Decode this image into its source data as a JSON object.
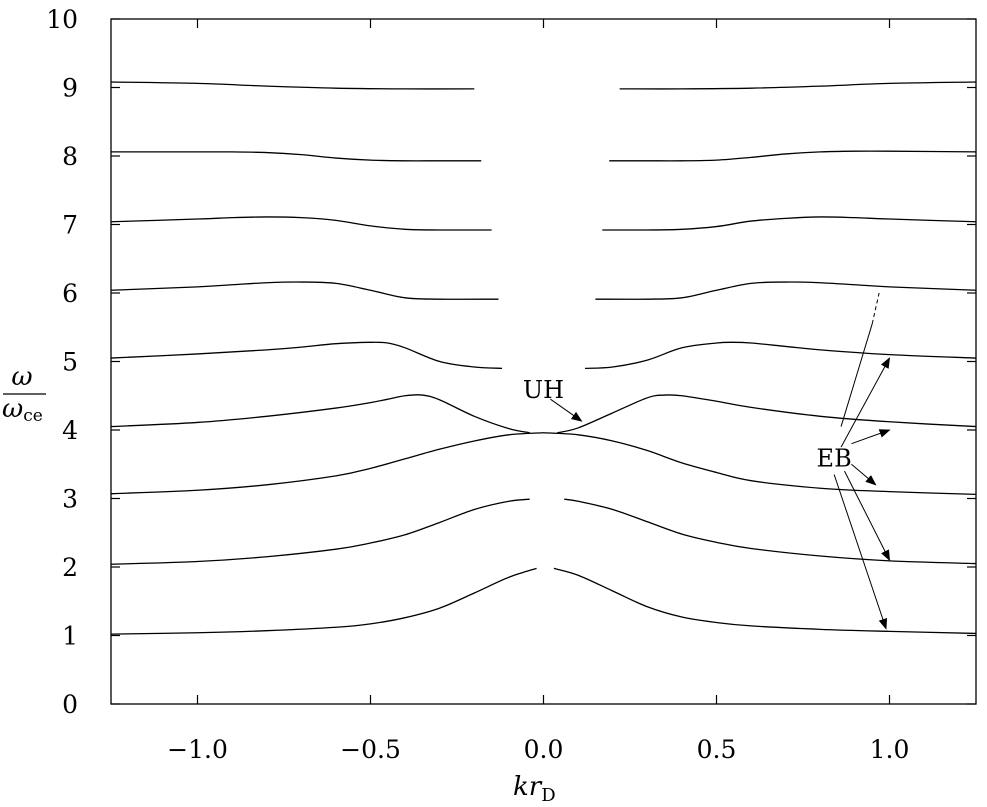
{
  "chart_data": {
    "type": "line",
    "xlabel": "kr_D",
    "ylabel": "ω/ω_ce",
    "xlabel_parts": {
      "main": "kr",
      "sub": "D"
    },
    "ylabel_parts": {
      "numerator": "ω",
      "denominator": "ω",
      "denominator_sub": "ce"
    },
    "xlim": [
      -1.25,
      1.25
    ],
    "ylim": [
      0,
      10
    ],
    "x_ticks": [
      -1.0,
      -0.5,
      0.0,
      0.5,
      1.0
    ],
    "x_tick_labels": [
      "−1.0",
      "−0.5",
      "0.0",
      "0.5",
      "1.0"
    ],
    "y_ticks": [
      0,
      1,
      2,
      3,
      4,
      5,
      6,
      7,
      8,
      9,
      10
    ],
    "y_tick_labels": [
      "0",
      "1",
      "2",
      "3",
      "4",
      "5",
      "6",
      "7",
      "8",
      "9",
      "10"
    ],
    "grid": false,
    "legend": "none",
    "series": [
      {
        "x": [
          -1.25,
          -1.0,
          -0.8,
          -0.6,
          -0.5,
          -0.4,
          -0.3,
          -0.2,
          -0.1,
          -0.02
        ],
        "y": [
          1.02,
          1.04,
          1.07,
          1.12,
          1.17,
          1.26,
          1.4,
          1.62,
          1.85,
          1.98
        ]
      },
      {
        "x": [
          0.03,
          0.1,
          0.2,
          0.3,
          0.4,
          0.5,
          0.6,
          0.8,
          1.0,
          1.25
        ],
        "y": [
          1.98,
          1.88,
          1.65,
          1.42,
          1.27,
          1.19,
          1.14,
          1.09,
          1.06,
          1.03
        ]
      },
      {
        "x": [
          -1.25,
          -1.0,
          -0.8,
          -0.6,
          -0.5,
          -0.4,
          -0.3,
          -0.2,
          -0.1,
          -0.04
        ],
        "y": [
          2.04,
          2.08,
          2.15,
          2.26,
          2.35,
          2.47,
          2.65,
          2.84,
          2.96,
          2.99
        ]
      },
      {
        "x": [
          0.06,
          0.1,
          0.2,
          0.3,
          0.4,
          0.5,
          0.6,
          0.8,
          1.0,
          1.25
        ],
        "y": [
          2.99,
          2.96,
          2.84,
          2.66,
          2.48,
          2.36,
          2.27,
          2.16,
          2.09,
          2.05
        ]
      },
      {
        "x": [
          -1.25,
          -1.0,
          -0.8,
          -0.6,
          -0.5,
          -0.4,
          -0.3,
          -0.2,
          -0.1,
          0.0
        ],
        "y": [
          3.07,
          3.12,
          3.2,
          3.33,
          3.44,
          3.58,
          3.72,
          3.84,
          3.93,
          3.96
        ]
      },
      {
        "x": [
          0.0,
          0.1,
          0.2,
          0.3,
          0.4,
          0.5,
          0.6,
          0.8,
          1.0,
          1.25
        ],
        "y": [
          3.96,
          3.93,
          3.84,
          3.7,
          3.52,
          3.38,
          3.26,
          3.15,
          3.1,
          3.06
        ]
      },
      {
        "x": [
          -1.25,
          -1.0,
          -0.8,
          -0.6,
          -0.5,
          -0.45,
          -0.4,
          -0.35,
          -0.3,
          -0.2,
          -0.1,
          -0.04
        ],
        "y": [
          4.05,
          4.11,
          4.2,
          4.32,
          4.4,
          4.45,
          4.5,
          4.51,
          4.44,
          4.2,
          4.02,
          3.96
        ]
      },
      {
        "x": [
          0.04,
          0.1,
          0.2,
          0.3,
          0.35,
          0.4,
          0.5,
          0.6,
          0.8,
          1.0,
          1.25
        ],
        "y": [
          3.96,
          4.03,
          4.25,
          4.47,
          4.51,
          4.5,
          4.42,
          4.33,
          4.2,
          4.12,
          4.05
        ]
      },
      {
        "x": [
          -1.25,
          -1.0,
          -0.8,
          -0.7,
          -0.6,
          -0.5,
          -0.45,
          -0.4,
          -0.3,
          -0.2,
          -0.12
        ],
        "y": [
          5.05,
          5.11,
          5.17,
          5.21,
          5.26,
          5.28,
          5.27,
          5.2,
          5.0,
          4.92,
          4.9
        ]
      },
      {
        "x": [
          0.12,
          0.2,
          0.3,
          0.4,
          0.5,
          0.55,
          0.6,
          0.7,
          0.8,
          1.0,
          1.25
        ],
        "y": [
          4.9,
          4.92,
          5.02,
          5.2,
          5.27,
          5.28,
          5.27,
          5.22,
          5.17,
          5.1,
          5.05
        ]
      },
      {
        "x": [
          -1.25,
          -1.0,
          -0.9,
          -0.8,
          -0.7,
          -0.6,
          -0.5,
          -0.4,
          -0.3,
          -0.13
        ],
        "y": [
          6.04,
          6.09,
          6.12,
          6.15,
          6.16,
          6.14,
          6.04,
          5.93,
          5.91,
          5.91
        ]
      },
      {
        "x": [
          0.15,
          0.3,
          0.4,
          0.5,
          0.6,
          0.7,
          0.8,
          0.9,
          1.0,
          1.25
        ],
        "y": [
          5.91,
          5.91,
          5.93,
          6.04,
          6.14,
          6.16,
          6.15,
          6.12,
          6.09,
          6.04
        ]
      },
      {
        "x": [
          -1.25,
          -1.0,
          -0.9,
          -0.8,
          -0.7,
          -0.6,
          -0.5,
          -0.4,
          -0.3,
          -0.15
        ],
        "y": [
          7.04,
          7.08,
          7.1,
          7.11,
          7.1,
          7.06,
          6.98,
          6.93,
          6.92,
          6.92
        ]
      },
      {
        "x": [
          0.17,
          0.3,
          0.4,
          0.5,
          0.6,
          0.7,
          0.8,
          0.9,
          1.0,
          1.25
        ],
        "y": [
          6.92,
          6.92,
          6.93,
          6.97,
          7.05,
          7.09,
          7.11,
          7.1,
          7.08,
          7.04
        ]
      },
      {
        "x": [
          -1.25,
          -1.0,
          -0.9,
          -0.8,
          -0.7,
          -0.6,
          -0.5,
          -0.4,
          -0.3,
          -0.18
        ],
        "y": [
          8.06,
          8.06,
          8.06,
          8.05,
          8.02,
          7.97,
          7.94,
          7.93,
          7.93,
          7.93
        ]
      },
      {
        "x": [
          0.19,
          0.3,
          0.4,
          0.5,
          0.6,
          0.7,
          0.8,
          0.9,
          1.0,
          1.25
        ],
        "y": [
          7.93,
          7.93,
          7.93,
          7.94,
          7.98,
          8.03,
          8.06,
          8.07,
          8.07,
          8.06
        ]
      },
      {
        "x": [
          -1.25,
          -1.0,
          -0.8,
          -0.6,
          -0.4,
          -0.2
        ],
        "y": [
          9.08,
          9.06,
          9.02,
          8.99,
          8.98,
          8.98
        ]
      },
      {
        "x": [
          0.22,
          0.4,
          0.6,
          0.8,
          1.0,
          1.25
        ],
        "y": [
          8.98,
          8.98,
          8.99,
          9.02,
          9.06,
          9.08
        ]
      }
    ],
    "annotations": [
      {
        "text": "UH",
        "label_at": [
          0.0,
          4.6
        ],
        "arrows": [
          {
            "from": [
              0.02,
              4.45
            ],
            "to": [
              0.11,
              4.13
            ]
          }
        ]
      },
      {
        "text": "EB",
        "label_at": [
          0.84,
          3.6
        ],
        "arrows": [
          {
            "from": [
              0.89,
              3.8
            ],
            "to": [
              1.0,
              4.0
            ]
          },
          {
            "from": [
              0.89,
              3.5
            ],
            "to": [
              0.96,
              3.2
            ]
          },
          {
            "from": [
              0.86,
              3.75
            ],
            "to": [
              1.0,
              5.05
            ]
          },
          {
            "from": [
              0.87,
              3.4
            ],
            "to": [
              1.0,
              2.1
            ]
          },
          {
            "from": [
              0.84,
              3.35
            ],
            "to": [
              0.99,
              1.1
            ]
          }
        ],
        "line": {
          "from": [
            0.86,
            4.05
          ],
          "to": [
            0.95,
            5.55
          ]
        },
        "dashed_line": {
          "from": [
            0.95,
            5.55
          ],
          "to": [
            0.97,
            6.0
          ]
        }
      }
    ]
  }
}
